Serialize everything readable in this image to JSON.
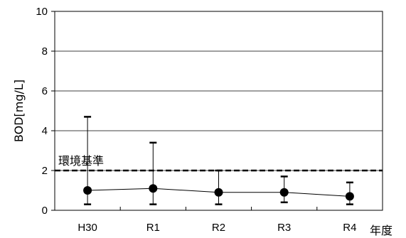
{
  "chart_data": {
    "type": "line",
    "xlabel": "年度",
    "ylabel": "BOD[mg/L]",
    "categories": [
      "H30",
      "R1",
      "R2",
      "R3",
      "R4"
    ],
    "ylim": [
      0,
      10
    ],
    "yticks": [
      0,
      2,
      4,
      6,
      8,
      10
    ],
    "grid": true,
    "series": [
      {
        "mean": [
          1.0,
          1.1,
          0.9,
          0.9,
          0.7
        ],
        "max": [
          4.7,
          3.4,
          2.0,
          1.7,
          1.4
        ],
        "min": [
          0.3,
          0.3,
          0.3,
          0.4,
          0.3
        ]
      }
    ],
    "reference_line": {
      "label": "環境基準",
      "value": 2.0,
      "style": "dashed"
    }
  }
}
